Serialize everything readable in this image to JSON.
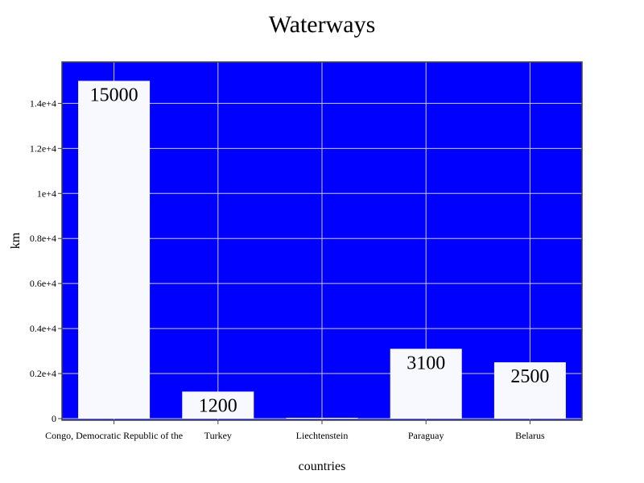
{
  "chart_data": {
    "type": "bar",
    "title": "Waterways",
    "xlabel": "countries",
    "ylabel": "km",
    "categories": [
      "Congo, Democratic Republic of the",
      "Turkey",
      "Liechtenstein",
      "Paraguay",
      "Belarus"
    ],
    "values": [
      15000,
      1200,
      28,
      3100,
      2500
    ],
    "data_labels": [
      "15000",
      "1200",
      "",
      "3100",
      "2500"
    ],
    "ylim": [
      0,
      15900
    ],
    "yticks": [
      0,
      2000,
      4000,
      6000,
      8000,
      10000,
      12000,
      14000
    ],
    "ytick_labels": [
      "0",
      "0.2e+4",
      "0.4e+4",
      "0.6e+4",
      "0.8e+4",
      "1e+4",
      "1.2e+4",
      "1.4e+4"
    ],
    "grid": true,
    "colors": {
      "plot_background": "#0000ff",
      "bar_fill": "#f8f8ff",
      "grid": "#c8c8d8",
      "frame": "#444444"
    }
  }
}
